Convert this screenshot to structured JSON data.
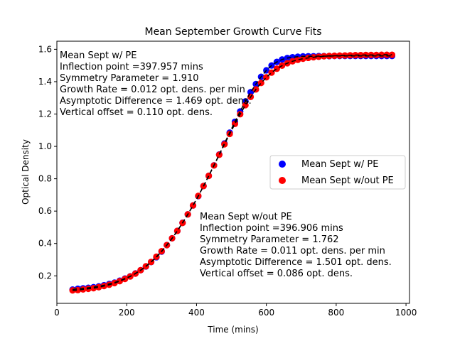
{
  "chart_data": {
    "type": "scatter",
    "title": "Mean September Growth Curve Fits",
    "xlabel": "Time (mins)",
    "ylabel": "Optical Density",
    "xlim": [
      0,
      1010
    ],
    "ylim": [
      0.03,
      1.65
    ],
    "xticks": [
      0,
      200,
      400,
      600,
      800,
      1000
    ],
    "yticks": [
      0.2,
      0.4,
      0.6,
      0.8,
      1.0,
      1.2,
      1.4,
      1.6
    ],
    "grid": false,
    "legend_position": "center-right",
    "series": [
      {
        "name": "Mean Sept w/ PE",
        "color": "#0000ff",
        "x": [
          45,
          60,
          75,
          90,
          105,
          120,
          135,
          150,
          165,
          180,
          195,
          210,
          225,
          240,
          255,
          270,
          285,
          300,
          315,
          330,
          345,
          360,
          375,
          390,
          405,
          420,
          435,
          450,
          465,
          480,
          495,
          510,
          525,
          540,
          555,
          570,
          585,
          600,
          615,
          630,
          645,
          660,
          675,
          690,
          705,
          720,
          735,
          750,
          765,
          780,
          795,
          810,
          825,
          840,
          855,
          870,
          885,
          900,
          915,
          930,
          945,
          960
        ],
        "y": [
          0.115,
          0.12,
          0.123,
          0.126,
          0.13,
          0.135,
          0.142,
          0.15,
          0.158,
          0.17,
          0.183,
          0.197,
          0.215,
          0.235,
          0.258,
          0.285,
          0.315,
          0.35,
          0.39,
          0.432,
          0.478,
          0.528,
          0.58,
          0.635,
          0.693,
          0.755,
          0.818,
          0.883,
          0.95,
          1.018,
          1.085,
          1.152,
          1.216,
          1.278,
          1.335,
          1.385,
          1.43,
          1.47,
          1.5,
          1.522,
          1.537,
          1.546,
          1.551,
          1.554,
          1.556,
          1.557,
          1.557,
          1.558,
          1.558,
          1.558,
          1.559,
          1.559,
          1.559,
          1.559,
          1.559,
          1.559,
          1.559,
          1.559,
          1.559,
          1.559,
          1.559,
          1.559
        ]
      },
      {
        "name": "Mean Sept w/out PE",
        "color": "#ff0000",
        "x": [
          45,
          60,
          75,
          90,
          105,
          120,
          135,
          150,
          165,
          180,
          195,
          210,
          225,
          240,
          255,
          270,
          285,
          300,
          315,
          330,
          345,
          360,
          375,
          390,
          405,
          420,
          435,
          450,
          465,
          480,
          495,
          510,
          525,
          540,
          555,
          570,
          585,
          600,
          615,
          630,
          645,
          660,
          675,
          690,
          705,
          720,
          735,
          750,
          765,
          780,
          795,
          810,
          825,
          840,
          855,
          870,
          885,
          900,
          915,
          930,
          945,
          960
        ],
        "y": [
          0.11,
          0.112,
          0.116,
          0.12,
          0.124,
          0.13,
          0.137,
          0.145,
          0.155,
          0.167,
          0.181,
          0.196,
          0.214,
          0.235,
          0.259,
          0.286,
          0.318,
          0.352,
          0.39,
          0.432,
          0.478,
          0.527,
          0.58,
          0.635,
          0.694,
          0.755,
          0.818,
          0.882,
          0.948,
          1.013,
          1.077,
          1.139,
          1.199,
          1.255,
          1.306,
          1.352,
          1.392,
          1.427,
          1.456,
          1.48,
          1.499,
          1.514,
          1.526,
          1.535,
          1.542,
          1.547,
          1.551,
          1.554,
          1.557,
          1.559,
          1.56,
          1.561,
          1.562,
          1.563,
          1.564,
          1.564,
          1.565,
          1.565,
          1.565,
          1.566,
          1.566,
          1.566
        ]
      }
    ],
    "fit_line": {
      "color": "#000000",
      "style": "dashed"
    },
    "annotations": [
      {
        "lines": [
          "Mean Sept w/ PE",
          "Inflection point =397.957 mins",
          "Symmetry Parameter = 1.910",
          "Growth Rate = 0.012 opt. dens. per min",
          "Asymptotic Difference = 1.469 opt. dens.",
          "Vertical offset = 0.110 opt. dens."
        ]
      },
      {
        "lines": [
          "Mean Sept w/out PE",
          "Inflection point =396.906 mins",
          "Symmetry Parameter = 1.762",
          "Growth Rate = 0.011 opt. dens. per min",
          "Asymptotic Difference = 1.501 opt. dens.",
          "Vertical offset = 0.086 opt. dens."
        ]
      }
    ]
  }
}
